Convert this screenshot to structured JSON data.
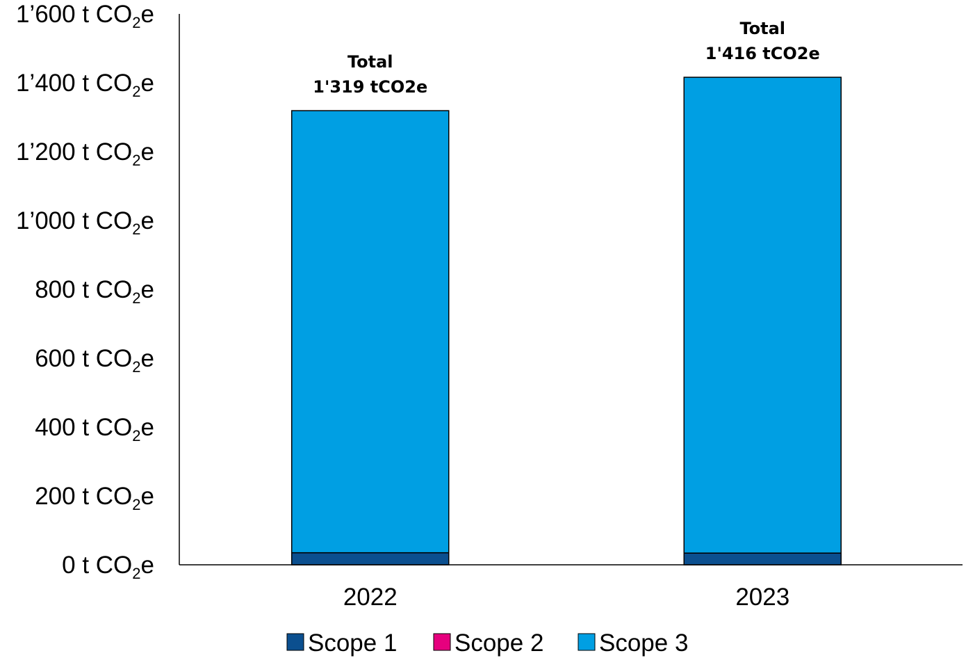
{
  "chart_data": {
    "type": "bar",
    "stacked": true,
    "categories": [
      "2022",
      "2023"
    ],
    "series": [
      {
        "name": "Scope 1",
        "values": [
          35,
          34
        ],
        "color": "#0b4f8f"
      },
      {
        "name": "Scope 2",
        "values": [
          0,
          0
        ],
        "color": "#e6007e"
      },
      {
        "name": "Scope 3",
        "values": [
          1284,
          1382
        ],
        "color": "#009fe3"
      }
    ],
    "totals": [
      {
        "line1": "Total",
        "line2": "1'319 tCO2e",
        "value": 1319
      },
      {
        "line1": "Total",
        "line2": "1'416 tCO2e",
        "value": 1416
      }
    ],
    "y_ticks": [
      {
        "value": 0,
        "label": "0 t CO",
        "sub": "2",
        "suffix": "e"
      },
      {
        "value": 200,
        "label": "200 t CO",
        "sub": "2",
        "suffix": "e"
      },
      {
        "value": 400,
        "label": "400 t CO",
        "sub": "2",
        "suffix": "e"
      },
      {
        "value": 600,
        "label": "600 t CO",
        "sub": "2",
        "suffix": "e"
      },
      {
        "value": 800,
        "label": "800 t CO",
        "sub": "2",
        "suffix": "e"
      },
      {
        "value": 1000,
        "label": "1’000 t CO",
        "sub": "2",
        "suffix": "e"
      },
      {
        "value": 1200,
        "label": "1’200 t CO",
        "sub": "2",
        "suffix": "e"
      },
      {
        "value": 1400,
        "label": "1’400 t CO",
        "sub": "2",
        "suffix": "e"
      },
      {
        "value": 1600,
        "label": "1’600 t CO",
        "sub": "2",
        "suffix": "e"
      }
    ],
    "ylim": [
      0,
      1600
    ],
    "grid": false,
    "legend_position": "bottom"
  }
}
